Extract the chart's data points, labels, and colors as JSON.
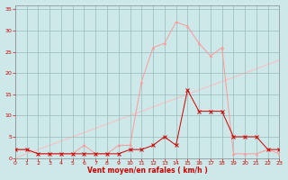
{
  "x": [
    0,
    1,
    2,
    3,
    4,
    5,
    6,
    7,
    8,
    9,
    10,
    11,
    12,
    13,
    14,
    15,
    16,
    17,
    18,
    19,
    20,
    21,
    22,
    23
  ],
  "mean_y": [
    2,
    2,
    1,
    1,
    1,
    1,
    1,
    1,
    1,
    1,
    2,
    2,
    3,
    5,
    3,
    16,
    11,
    11,
    11,
    5,
    5,
    5,
    2,
    2
  ],
  "gust_y": [
    2,
    2,
    1,
    1,
    1,
    1,
    3,
    1,
    1,
    3,
    3,
    18,
    26,
    27,
    32,
    31,
    27,
    24,
    26,
    1,
    1,
    1,
    2,
    1
  ],
  "linear_y": [
    0,
    1,
    2,
    3,
    4,
    5,
    6,
    7,
    8,
    9,
    10,
    11,
    12,
    13,
    14,
    15,
    16,
    17,
    18,
    19,
    20,
    21,
    22,
    23
  ],
  "xlabel": "Vent moyen/en rafales ( km/h )",
  "yticks": [
    0,
    5,
    10,
    15,
    20,
    25,
    30,
    35
  ],
  "xticks": [
    0,
    1,
    2,
    3,
    4,
    5,
    6,
    7,
    8,
    9,
    10,
    11,
    12,
    13,
    14,
    15,
    16,
    17,
    18,
    19,
    20,
    21,
    22,
    23
  ],
  "bg_color": "#cce8e8",
  "grid_color": "#99bbbb",
  "mean_color": "#cc0000",
  "gust_color": "#ff9999",
  "linear_color": "#ffbbbb",
  "xlabel_color": "#cc0000",
  "tick_color": "#cc0000",
  "spine_color": "#888888",
  "ylim": [
    0,
    36
  ],
  "xlim": [
    0,
    23
  ]
}
